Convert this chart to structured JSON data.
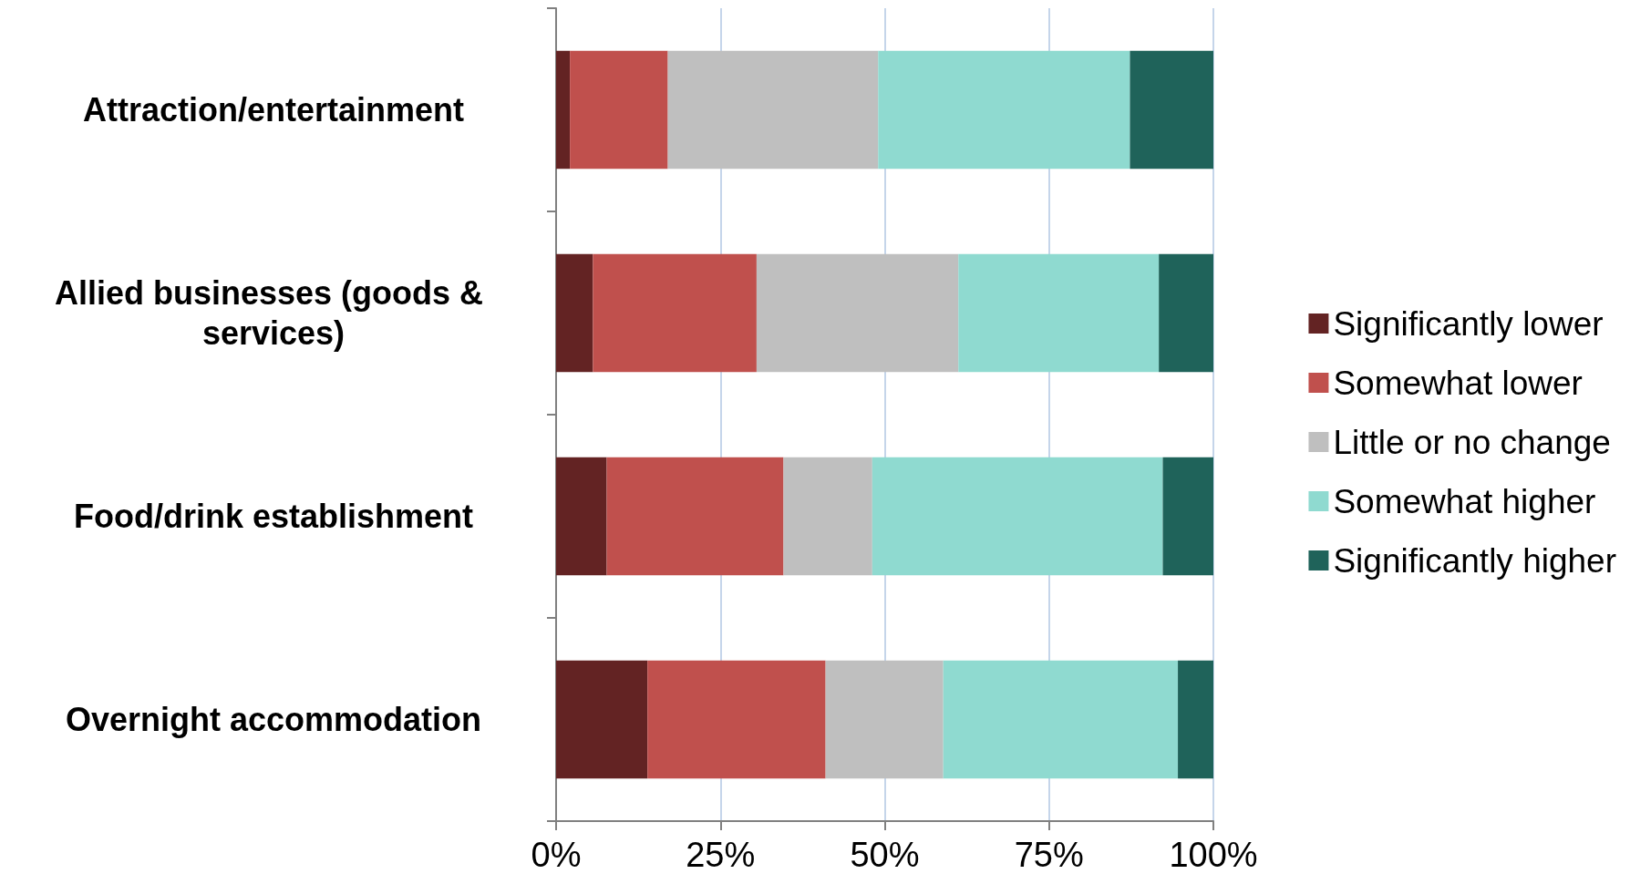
{
  "chart_data": {
    "type": "bar",
    "orientation": "horizontal",
    "stacked": true,
    "categories": [
      "Attraction/entertainment",
      "Allied businesses (goods & services)",
      "Food/drink establishment",
      "Overnight accommodation"
    ],
    "series": [
      {
        "name": "Significantly lower",
        "color": "#632323",
        "values": [
          2.1,
          5.6,
          7.7,
          13.9
        ]
      },
      {
        "name": "Somewhat lower",
        "color": "#c0504d",
        "values": [
          14.9,
          24.9,
          26.9,
          27.1
        ]
      },
      {
        "name": "Little or no change",
        "color": "#bfbfbf",
        "values": [
          32.0,
          30.7,
          13.5,
          17.9
        ]
      },
      {
        "name": "Somewhat higher",
        "color": "#8fdad0",
        "values": [
          38.3,
          30.5,
          44.2,
          35.7
        ]
      },
      {
        "name": "Significantly higher",
        "color": "#1f635a",
        "values": [
          12.7,
          8.3,
          7.7,
          5.4
        ]
      }
    ],
    "xlim": [
      0,
      100
    ],
    "xticks": [
      {
        "value": 0,
        "label": "0%"
      },
      {
        "value": 25,
        "label": "25%"
      },
      {
        "value": 50,
        "label": "50%"
      },
      {
        "value": 75,
        "label": "75%"
      },
      {
        "value": 100,
        "label": "100%"
      }
    ],
    "grid": "x",
    "legend": "right"
  }
}
